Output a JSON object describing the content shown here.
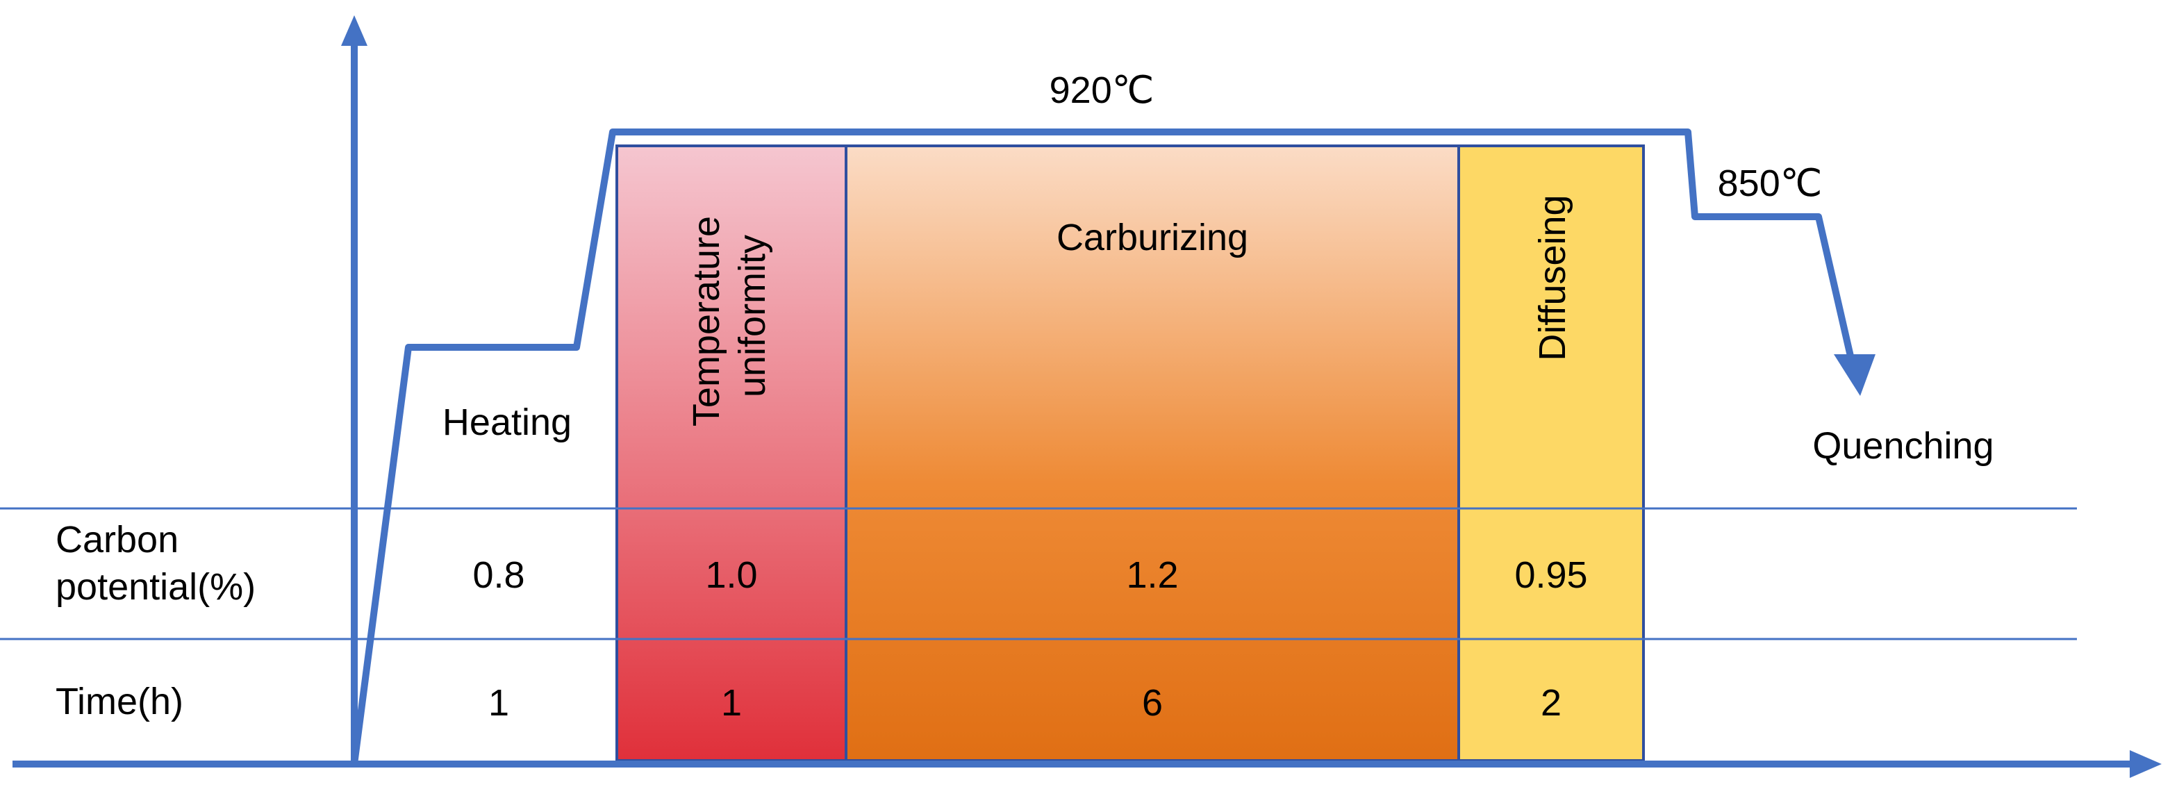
{
  "colors": {
    "axis": "#4472C4",
    "gridline": "#4472C4",
    "box_border": "#2F4F9F",
    "temperature_uniformity_top": "#F5C6D0",
    "temperature_uniformity_bottom": "#E0303A",
    "carburizing_top": "#FBDCC6",
    "carburizing_mid": "#EE8A35",
    "carburizing_bottom": "#E06F14",
    "diffuseing": "#FDD865"
  },
  "curve": {
    "temp_high": "920℃",
    "temp_low": "850℃",
    "end_label": "Quenching"
  },
  "stages": [
    {
      "label": "Heating",
      "carbon_potential": "0.8",
      "time": "1"
    },
    {
      "label": "Temperature uniformity",
      "label_line1": "Temperature",
      "label_line2": "uniformity",
      "carbon_potential": "1.0",
      "time": "1"
    },
    {
      "label": "Carburizing",
      "carbon_potential": "1.2",
      "time": "6"
    },
    {
      "label": "Diffuseing",
      "carbon_potential": "0.95",
      "time": "2"
    }
  ],
  "rows": {
    "carbon_potential_line1": "Carbon",
    "carbon_potential_line2": "potential(%)",
    "time": "Time(h)"
  }
}
